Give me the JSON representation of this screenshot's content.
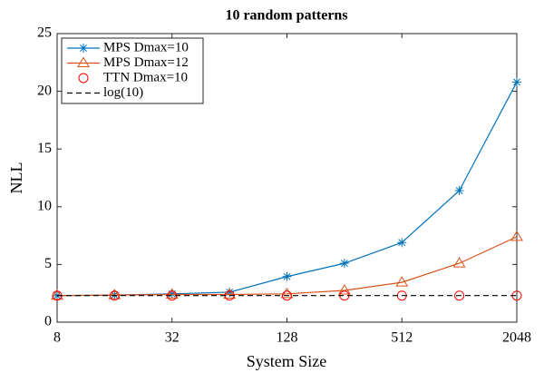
{
  "chart_data": {
    "type": "line",
    "title": "10 random patterns",
    "xlabel": "System Size",
    "ylabel": "NLL",
    "x": [
      8,
      16,
      32,
      64,
      128,
      256,
      512,
      1024,
      2048
    ],
    "xlog": true,
    "xlim": [
      8,
      2048
    ],
    "xticks": [
      8,
      32,
      128,
      512,
      2048
    ],
    "ylim": [
      0,
      25
    ],
    "yticks": [
      0,
      5,
      10,
      15,
      20,
      25
    ],
    "legend": "upper-left",
    "grid": false,
    "series": [
      {
        "name": "MPS Dmax=10",
        "color": "#0072bd",
        "marker": "star",
        "line": "solid",
        "values": [
          2.3,
          2.35,
          2.45,
          2.6,
          3.95,
          5.1,
          6.9,
          11.4,
          20.8
        ]
      },
      {
        "name": "MPS Dmax=12",
        "color": "#d95319",
        "marker": "triangle",
        "line": "solid",
        "values": [
          2.3,
          2.35,
          2.4,
          2.4,
          2.45,
          2.75,
          3.45,
          5.1,
          7.4
        ]
      },
      {
        "name": "TTN Dmax=10",
        "color": "#ff0000",
        "marker": "circle",
        "line": "none",
        "values": [
          2.3,
          2.3,
          2.3,
          2.3,
          2.3,
          2.3,
          2.3,
          2.3,
          2.3
        ]
      },
      {
        "name": "log(10)",
        "color": "#000000",
        "marker": "none",
        "line": "dashed",
        "values": [
          2.3026,
          2.3026,
          2.3026,
          2.3026,
          2.3026,
          2.3026,
          2.3026,
          2.3026,
          2.3026
        ]
      }
    ]
  }
}
